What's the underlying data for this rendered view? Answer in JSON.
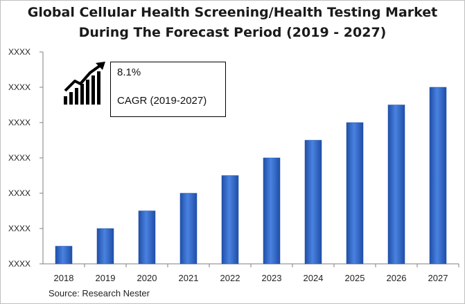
{
  "title_line1": "Global Cellular Health Screening/Health Testing Market",
  "title_line2": "During The Forecast Period (2019 - 2027)",
  "source": "Source: Research Nester",
  "cagr": {
    "value": "8.1%",
    "label": "CAGR (2019-2027)"
  },
  "icon": "growth-chart-icon",
  "colors": {
    "bar": "#3a6fcf",
    "bar_dark": "#1f4fa8",
    "axis": "#7f7f7f"
  },
  "chart_data": {
    "type": "bar",
    "title": "Global Cellular Health Screening/Health Testing Market During The Forecast Period (2019 - 2027)",
    "categories": [
      "2018",
      "2019",
      "2020",
      "2021",
      "2022",
      "2023",
      "2024",
      "2025",
      "2026",
      "2027"
    ],
    "values": [
      0.5,
      1.0,
      1.5,
      2.0,
      2.5,
      3.0,
      3.5,
      4.0,
      4.5,
      5.0
    ],
    "ytick_labels": [
      "XXXX",
      "XXXX",
      "XXXX",
      "XXXX",
      "XXXX",
      "XXXX",
      "XXXX"
    ],
    "ylim": [
      0,
      6
    ],
    "xlabel": "",
    "ylabel": "",
    "grid": false,
    "legend": "none"
  }
}
